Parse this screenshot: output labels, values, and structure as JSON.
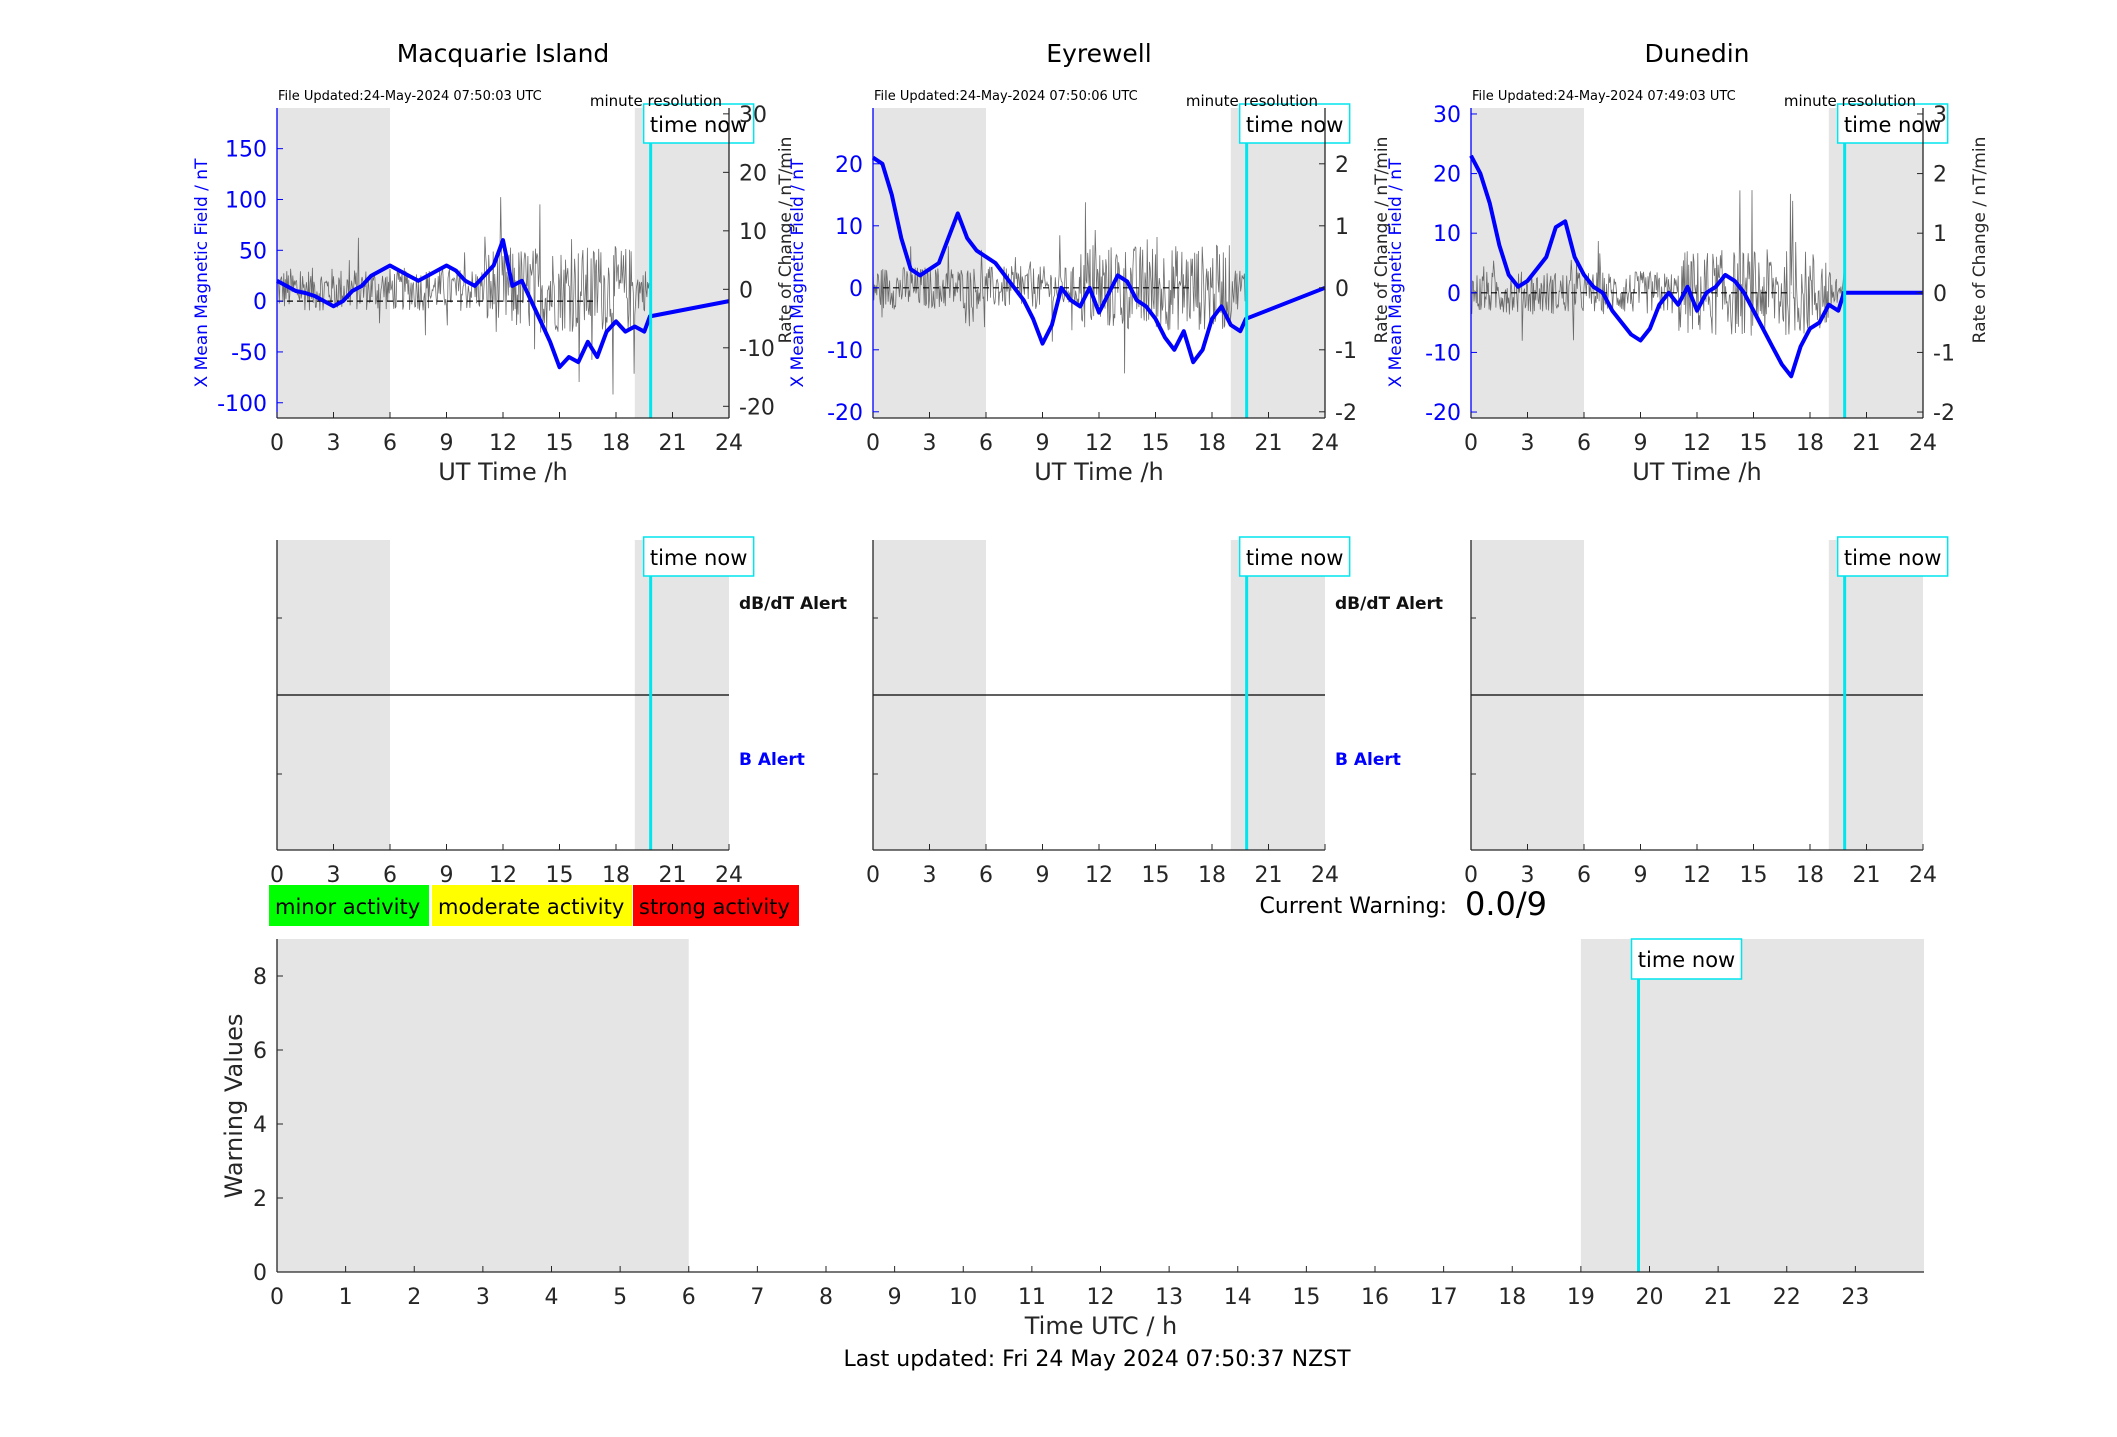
{
  "stations": [
    {
      "name": "Macquarie Island",
      "file_updated": "File Updated:24-May-2024 07:50:03 UTC",
      "resolution": "minute resolution",
      "left_axis": {
        "label": "X Mean Magnetic Field / nT",
        "ylim": [
          -115,
          190
        ],
        "ticks": [
          -100,
          -50,
          0,
          50,
          100,
          150
        ]
      },
      "right_axis": {
        "label": "Rate of Change / nT/min",
        "ylim": [
          -22,
          31
        ],
        "ticks": [
          -20,
          -10,
          0,
          10,
          20,
          30
        ]
      },
      "x_field": [
        0,
        0.5,
        1,
        1.5,
        2,
        2.5,
        3,
        3.5,
        4,
        4.5,
        5,
        5.5,
        6,
        6.5,
        7,
        7.5,
        8,
        8.5,
        9,
        9.5,
        10,
        10.5,
        11,
        11.5,
        12,
        12.5,
        13,
        13.5,
        14,
        14.5,
        15,
        15.5,
        16,
        16.5,
        17,
        17.5,
        18,
        18.5,
        19,
        19.5,
        19.8
      ],
      "y_field": [
        20,
        15,
        10,
        8,
        5,
        0,
        -5,
        0,
        10,
        15,
        25,
        30,
        35,
        30,
        25,
        20,
        25,
        30,
        35,
        30,
        20,
        15,
        25,
        35,
        60,
        15,
        20,
        0,
        -20,
        -40,
        -65,
        -55,
        -60,
        -40,
        -55,
        -30,
        -20,
        -30,
        -25,
        -30,
        -15
      ]
    },
    {
      "name": "Eyrewell",
      "file_updated": "File Updated:24-May-2024 07:50:06 UTC",
      "resolution": "minute resolution",
      "left_axis": {
        "label": "X Mean Magnetic Field / nT",
        "ylim": [
          -21,
          29
        ],
        "ticks": [
          -20,
          -10,
          0,
          10,
          20
        ]
      },
      "right_axis": {
        "label": "Rate of Change / nT/min",
        "ylim": [
          -2.1,
          2.9
        ],
        "ticks": [
          -2,
          -1,
          0,
          1,
          2
        ]
      },
      "x_field": [
        0,
        0.5,
        1,
        1.5,
        2,
        2.5,
        3,
        3.5,
        4,
        4.5,
        5,
        5.5,
        6,
        6.5,
        7,
        7.5,
        8,
        8.5,
        9,
        9.5,
        10,
        10.5,
        11,
        11.5,
        12,
        12.5,
        13,
        13.5,
        14,
        14.5,
        15,
        15.5,
        16,
        16.5,
        17,
        17.5,
        18,
        18.5,
        19,
        19.5,
        19.8
      ],
      "y_field": [
        21,
        20,
        15,
        8,
        3,
        2,
        3,
        4,
        8,
        12,
        8,
        6,
        5,
        4,
        2,
        0,
        -2,
        -5,
        -9,
        -6,
        0,
        -2,
        -3,
        0,
        -4,
        -1,
        2,
        1,
        -2,
        -3,
        -5,
        -8,
        -10,
        -7,
        -12,
        -10,
        -5,
        -3,
        -6,
        -7,
        -5
      ]
    },
    {
      "name": "Dunedin",
      "file_updated": "File Updated:24-May-2024 07:49:03 UTC",
      "resolution": "minute resolution",
      "left_axis": {
        "label": "X Mean Magnetic Field / nT",
        "ylim": [
          -21,
          31
        ],
        "ticks": [
          -20,
          -10,
          0,
          10,
          20,
          30
        ]
      },
      "right_axis": {
        "label": "Rate of Change / nT/min",
        "ylim": [
          -2.1,
          3.1
        ],
        "ticks": [
          -2,
          -1,
          0,
          1,
          2,
          3
        ]
      },
      "x_field": [
        0,
        0.5,
        1,
        1.5,
        2,
        2.5,
        3,
        3.5,
        4,
        4.5,
        5,
        5.5,
        6,
        6.5,
        7,
        7.5,
        8,
        8.5,
        9,
        9.5,
        10,
        10.5,
        11,
        11.5,
        12,
        12.5,
        13,
        13.5,
        14,
        14.5,
        15,
        15.5,
        16,
        16.5,
        17,
        17.5,
        18,
        18.5,
        19,
        19.5,
        19.8
      ],
      "y_field": [
        23,
        20,
        15,
        8,
        3,
        1,
        2,
        4,
        6,
        11,
        12,
        6,
        3,
        1,
        0,
        -3,
        -5,
        -7,
        -8,
        -6,
        -2,
        0,
        -2,
        1,
        -3,
        0,
        1,
        3,
        2,
        0,
        -3,
        -6,
        -9,
        -12,
        -14,
        -9,
        -6,
        -5,
        -2,
        -3,
        0
      ]
    }
  ],
  "shared": {
    "x_label": "UT Time /h",
    "x_ticks": [
      0,
      3,
      6,
      9,
      12,
      15,
      18,
      21,
      24
    ],
    "time_now": "time now",
    "time_now_value": 19.84,
    "night_bands": [
      [
        0,
        6
      ],
      [
        19,
        24
      ]
    ],
    "field_color": "#0000ff",
    "rate_color": "#000000",
    "time_now_color": "#00e5ee",
    "night_color": "#e5e5e5"
  },
  "alerts": {
    "dbdt_label": "dB/dT Alert",
    "b_label": "B Alert"
  },
  "legend": [
    {
      "label": "minor activity",
      "color": "#00ff00"
    },
    {
      "label": "moderate activity",
      "color": "#ffff00"
    },
    {
      "label": "strong activity",
      "color": "#ff0000"
    }
  ],
  "current_warning": {
    "label": "Current Warning:",
    "value": "0.0/9"
  },
  "warning_chart": {
    "ylabel": "Warning Values",
    "xlabel": "Time UTC / h",
    "yticks": [
      0,
      2,
      4,
      6,
      8
    ],
    "ylim": [
      0,
      9
    ],
    "xticks": [
      0,
      1,
      2,
      3,
      4,
      5,
      6,
      7,
      8,
      9,
      10,
      11,
      12,
      13,
      14,
      15,
      16,
      17,
      18,
      19,
      20,
      21,
      22,
      23
    ],
    "xlim": [
      0,
      24
    ],
    "night_bands": [
      [
        0,
        6
      ],
      [
        19,
        24
      ]
    ],
    "values": [],
    "time_now_value": 19.84
  },
  "chart_data": [
    {
      "type": "line",
      "title": "Macquarie Island",
      "xlabel": "UT Time /h",
      "ylabel": "X Mean Magnetic Field / nT",
      "y2label": "Rate of Change / nT/min",
      "xlim": [
        0,
        24
      ],
      "ylim": [
        -115,
        190
      ],
      "series": [
        {
          "name": "X Mean Magnetic Field / nT",
          "x": [
            0,
            1,
            2,
            3,
            4,
            5,
            6,
            8,
            9,
            10,
            11,
            12,
            13,
            14,
            15,
            16,
            17,
            18,
            19,
            19.8
          ],
          "values": [
            20,
            10,
            5,
            -5,
            10,
            25,
            35,
            25,
            35,
            20,
            25,
            60,
            20,
            -20,
            -65,
            -60,
            -55,
            -20,
            -25,
            -15
          ]
        }
      ]
    },
    {
      "type": "line",
      "title": "Eyrewell",
      "xlabel": "UT Time /h",
      "ylabel": "X Mean Magnetic Field / nT",
      "y2label": "Rate of Change / nT/min",
      "xlim": [
        0,
        24
      ],
      "ylim": [
        -21,
        29
      ],
      "series": [
        {
          "name": "X Mean Magnetic Field / nT",
          "x": [
            0,
            1,
            2,
            3,
            4,
            5,
            6,
            8,
            9,
            10,
            11,
            12,
            13,
            14,
            15,
            16,
            17,
            18,
            19,
            19.8
          ],
          "values": [
            21,
            15,
            3,
            3,
            8,
            8,
            5,
            -2,
            -9,
            0,
            -3,
            -4,
            2,
            -2,
            -5,
            -10,
            -12,
            -5,
            -6,
            -5
          ]
        }
      ]
    },
    {
      "type": "line",
      "title": "Dunedin",
      "xlabel": "UT Time /h",
      "ylabel": "X Mean Magnetic Field / nT",
      "y2label": "Rate of Change / nT/min",
      "xlim": [
        0,
        24
      ],
      "ylim": [
        -21,
        31
      ],
      "series": [
        {
          "name": "X Mean Magnetic Field / nT",
          "x": [
            0,
            1,
            2,
            3,
            4,
            5,
            6,
            8,
            9,
            10,
            11,
            12,
            13,
            14,
            15,
            16,
            17,
            18,
            19,
            19.8
          ],
          "values": [
            23,
            15,
            3,
            2,
            6,
            12,
            3,
            -5,
            -8,
            -2,
            -2,
            -3,
            1,
            2,
            -3,
            -9,
            -14,
            -6,
            -2,
            0
          ]
        }
      ]
    },
    {
      "type": "bar",
      "xlabel": "Time UTC / h",
      "ylabel": "Warning Values",
      "xlim": [
        0,
        24
      ],
      "ylim": [
        0,
        9
      ],
      "values": []
    }
  ],
  "footer": {
    "last_updated": "Last updated: Fri 24 May 2024 07:50:37 NZST"
  }
}
